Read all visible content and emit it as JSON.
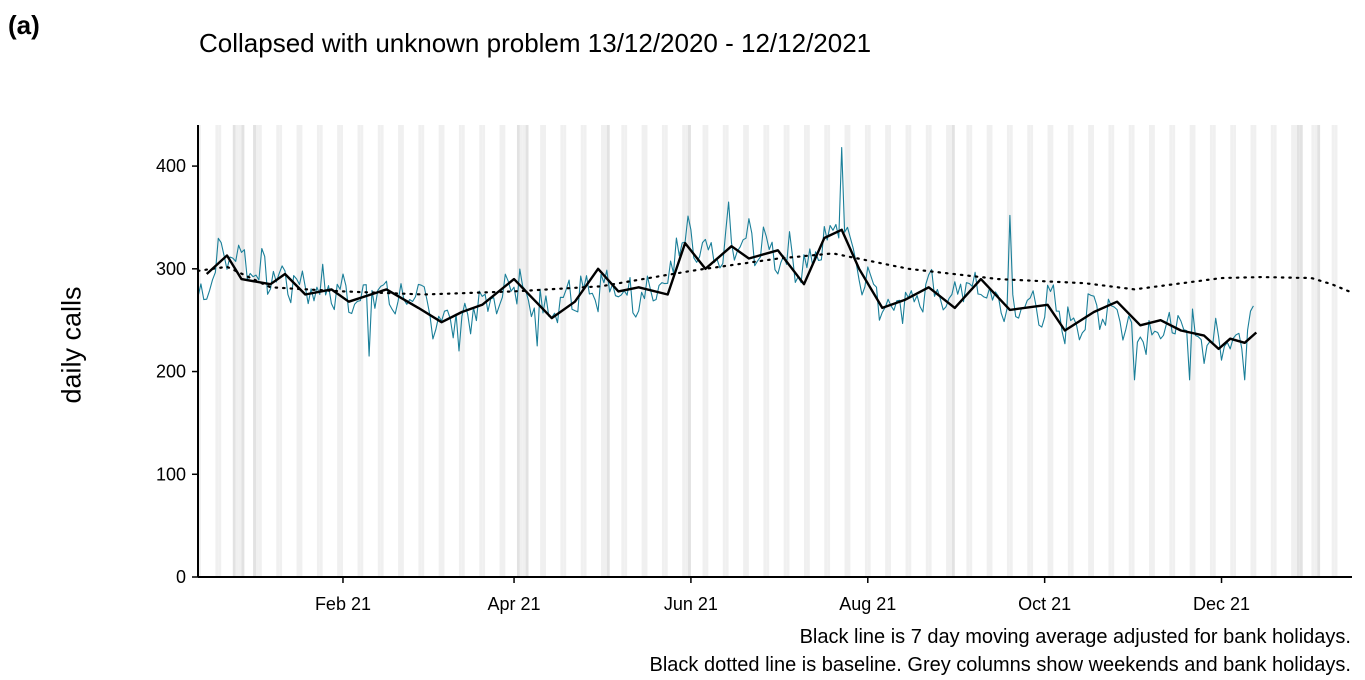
{
  "panel_label": "(a)",
  "chart_data": {
    "type": "line",
    "title": "Collapsed with unknown problem 13/12/2020 - 12/12/2021",
    "xlabel": "",
    "ylabel": "daily calls",
    "x_range": [
      "2020-12-13",
      "2022-01-15"
    ],
    "ylim": [
      0,
      440
    ],
    "y_ticks": [
      0,
      100,
      200,
      300,
      400
    ],
    "x_ticks": [
      {
        "date": "2021-02-01",
        "label": "Feb 21"
      },
      {
        "date": "2021-04-01",
        "label": "Apr 21"
      },
      {
        "date": "2021-06-01",
        "label": "Jun 21"
      },
      {
        "date": "2021-08-01",
        "label": "Aug 21"
      },
      {
        "date": "2021-10-01",
        "label": "Oct 21"
      },
      {
        "date": "2021-12-01",
        "label": "Dec 21"
      }
    ],
    "grid": false,
    "shaded_columns": "weekends and bank holidays",
    "bank_holidays": [
      "2020-12-25",
      "2020-12-28",
      "2021-01-01",
      "2021-04-02",
      "2021-04-05",
      "2021-05-03",
      "2021-05-31",
      "2021-08-30",
      "2021-12-27",
      "2021-12-28",
      "2022-01-03"
    ],
    "series": [
      {
        "style": "teal thin line",
        "color": "#1a7f99",
        "x_start": "2020-12-13",
        "x_end": "2021-12-12",
        "step": "1 day",
        "anchors": [
          [
            "2020-12-13",
            265
          ],
          [
            "2020-12-20",
            310
          ],
          [
            "2020-12-27",
            315
          ],
          [
            "2021-01-03",
            295
          ],
          [
            "2021-01-17",
            285
          ],
          [
            "2021-01-31",
            275
          ],
          [
            "2021-02-14",
            275
          ],
          [
            "2021-02-28",
            265
          ],
          [
            "2021-03-07",
            250
          ],
          [
            "2021-03-14",
            250
          ],
          [
            "2021-03-28",
            275
          ],
          [
            "2021-04-04",
            285
          ],
          [
            "2021-04-11",
            260
          ],
          [
            "2021-04-25",
            285
          ],
          [
            "2021-05-09",
            275
          ],
          [
            "2021-05-23",
            280
          ],
          [
            "2021-05-31",
            325
          ],
          [
            "2021-06-07",
            305
          ],
          [
            "2021-06-21",
            325
          ],
          [
            "2021-07-05",
            310
          ],
          [
            "2021-07-12",
            300
          ],
          [
            "2021-07-19",
            335
          ],
          [
            "2021-07-24",
            340
          ],
          [
            "2021-07-31",
            290
          ],
          [
            "2021-08-07",
            265
          ],
          [
            "2021-08-21",
            275
          ],
          [
            "2021-08-28",
            270
          ],
          [
            "2021-09-04",
            285
          ],
          [
            "2021-09-18",
            260
          ],
          [
            "2021-10-02",
            265
          ],
          [
            "2021-10-09",
            245
          ],
          [
            "2021-10-23",
            265
          ],
          [
            "2021-10-31",
            240
          ],
          [
            "2021-11-14",
            240
          ],
          [
            "2021-11-21",
            240
          ],
          [
            "2021-11-28",
            225
          ],
          [
            "2021-12-05",
            232
          ],
          [
            "2021-12-12",
            255
          ]
        ],
        "noise_amplitude": 22,
        "spikes": [
          [
            "2021-07-23",
            418
          ],
          [
            "2021-06-14",
            365
          ],
          [
            "2021-05-27",
            330
          ],
          [
            "2021-09-19",
            352
          ],
          [
            "2021-02-10",
            215
          ],
          [
            "2021-03-13",
            220
          ],
          [
            "2021-04-09",
            225
          ],
          [
            "2021-11-01",
            192
          ],
          [
            "2021-11-20",
            192
          ],
          [
            "2021-12-09",
            192
          ]
        ]
      },
      {
        "style": "black thick line",
        "color": "#000000",
        "anchors": [
          [
            "2020-12-16",
            295
          ],
          [
            "2020-12-23",
            313
          ],
          [
            "2020-12-28",
            290
          ],
          [
            "2021-01-07",
            285
          ],
          [
            "2021-01-12",
            295
          ],
          [
            "2021-01-19",
            275
          ],
          [
            "2021-01-28",
            280
          ],
          [
            "2021-02-03",
            268
          ],
          [
            "2021-02-16",
            280
          ],
          [
            "2021-02-27",
            262
          ],
          [
            "2021-03-07",
            248
          ],
          [
            "2021-03-14",
            258
          ],
          [
            "2021-03-21",
            265
          ],
          [
            "2021-04-01",
            290
          ],
          [
            "2021-04-14",
            252
          ],
          [
            "2021-04-22",
            268
          ],
          [
            "2021-04-30",
            300
          ],
          [
            "2021-05-07",
            278
          ],
          [
            "2021-05-14",
            282
          ],
          [
            "2021-05-24",
            275
          ],
          [
            "2021-05-30",
            325
          ],
          [
            "2021-06-06",
            300
          ],
          [
            "2021-06-15",
            322
          ],
          [
            "2021-06-21",
            310
          ],
          [
            "2021-07-01",
            318
          ],
          [
            "2021-07-10",
            285
          ],
          [
            "2021-07-17",
            330
          ],
          [
            "2021-07-23",
            338
          ],
          [
            "2021-07-29",
            300
          ],
          [
            "2021-08-06",
            262
          ],
          [
            "2021-08-14",
            270
          ],
          [
            "2021-08-22",
            282
          ],
          [
            "2021-08-31",
            262
          ],
          [
            "2021-09-09",
            290
          ],
          [
            "2021-09-19",
            260
          ],
          [
            "2021-10-02",
            265
          ],
          [
            "2021-10-08",
            240
          ],
          [
            "2021-10-18",
            258
          ],
          [
            "2021-10-26",
            268
          ],
          [
            "2021-11-03",
            245
          ],
          [
            "2021-11-10",
            250
          ],
          [
            "2021-11-17",
            240
          ],
          [
            "2021-11-25",
            235
          ],
          [
            "2021-11-30",
            222
          ],
          [
            "2021-12-04",
            232
          ],
          [
            "2021-12-09",
            228
          ],
          [
            "2021-12-13",
            238
          ]
        ]
      },
      {
        "style": "black dotted line",
        "color": "#000000",
        "anchors": [
          [
            "2020-12-13",
            298
          ],
          [
            "2020-12-23",
            302
          ],
          [
            "2021-01-07",
            282
          ],
          [
            "2021-02-01",
            278
          ],
          [
            "2021-03-01",
            275
          ],
          [
            "2021-04-01",
            278
          ],
          [
            "2021-05-01",
            283
          ],
          [
            "2021-06-01",
            298
          ],
          [
            "2021-07-01",
            310
          ],
          [
            "2021-07-20",
            315
          ],
          [
            "2021-08-15",
            300
          ],
          [
            "2021-09-15",
            290
          ],
          [
            "2021-10-15",
            286
          ],
          [
            "2021-11-01",
            280
          ],
          [
            "2021-12-01",
            291
          ],
          [
            "2021-12-15",
            292
          ],
          [
            "2022-01-01",
            291
          ],
          [
            "2022-01-08",
            285
          ],
          [
            "2022-01-14",
            278
          ]
        ]
      }
    ],
    "annotations": [
      "Black line is 7 day moving average adjusted for bank holidays.",
      "Black dotted line is baseline. Grey columns show weekends and bank holidays."
    ]
  }
}
